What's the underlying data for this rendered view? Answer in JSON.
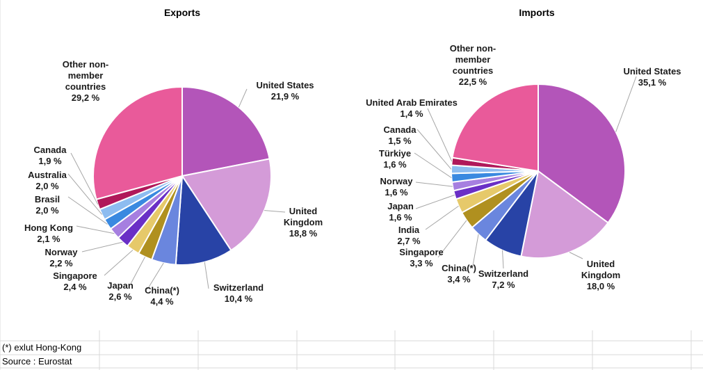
{
  "chart_data": [
    {
      "type": "pie",
      "title": "Exports",
      "labels": [
        "United States",
        "United Kingdom",
        "Switzerland",
        "China(*)",
        "Japan",
        "Singapore",
        "Norway",
        "Hong Kong",
        "Brasil",
        "Australia",
        "Canada",
        "Other non-member countries"
      ],
      "display_labels": [
        "United States",
        "United\nKingdom",
        "Switzerland",
        "China(*)",
        "Japan",
        "Singapore",
        "Norway",
        "Hong Kong",
        "Brasil",
        "Australia",
        "Canada",
        "Other non-\nmember\ncountries"
      ],
      "values": [
        21.9,
        18.8,
        10.4,
        4.4,
        2.6,
        2.4,
        2.2,
        2.1,
        2.0,
        2.0,
        1.9,
        29.2
      ],
      "value_labels": [
        "21,9 %",
        "18,8 %",
        "10,4 %",
        "4,4 %",
        "2,6 %",
        "2,4 %",
        "2,2 %",
        "2,1 %",
        "2,0 %",
        "2,0 %",
        "1,9 %",
        "29,2 %"
      ],
      "colors": [
        "#b355b9",
        "#d49bd8",
        "#2843a6",
        "#6a86de",
        "#b0901f",
        "#e6c96a",
        "#6a2fc6",
        "#a67fe0",
        "#3a89e0",
        "#8dbcf0",
        "#b0185a",
        "#e95a9a"
      ]
    },
    {
      "type": "pie",
      "title": "Imports",
      "labels": [
        "United States",
        "United Kingdom",
        "Switzerland",
        "China(*)",
        "Singapore",
        "India",
        "Japan",
        "Norway",
        "Türkiye",
        "Canada",
        "United Arab Emirates",
        "Other non-member countries"
      ],
      "display_labels": [
        "United States",
        "United\nKingdom",
        "Switzerland",
        "China(*)",
        "Singapore",
        "India",
        "Japan",
        "Norway",
        "Türkiye",
        "Canada",
        "United Arab Emirates",
        "Other non-\nmember\ncountries"
      ],
      "values": [
        35.1,
        18.0,
        7.2,
        3.4,
        3.3,
        2.7,
        1.6,
        1.6,
        1.6,
        1.5,
        1.4,
        22.5
      ],
      "value_labels": [
        "35,1 %",
        "18,0 %",
        "7,2 %",
        "3,4 %",
        "3,3 %",
        "2,7 %",
        "1,6 %",
        "1,6 %",
        "1,6 %",
        "1,5 %",
        "1,4 %",
        "22,5 %"
      ],
      "colors": [
        "#b355b9",
        "#d49bd8",
        "#2843a6",
        "#6a86de",
        "#b0901f",
        "#e6c96a",
        "#6a2fc6",
        "#a67fe0",
        "#3a89e0",
        "#8dbcf0",
        "#b0185a",
        "#e95a9a"
      ]
    }
  ],
  "notes": {
    "footnote": "(*) exlut Hong-Kong",
    "source": "Source : Eurostat"
  }
}
